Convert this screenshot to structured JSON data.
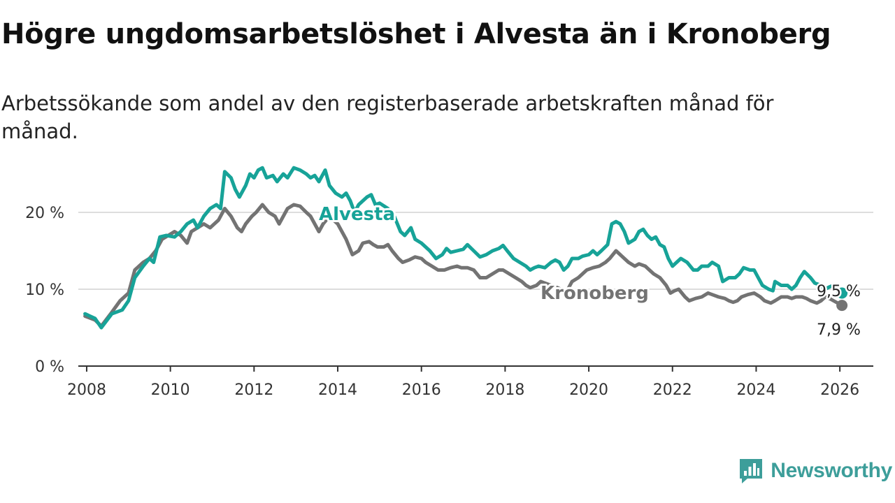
{
  "title": "Högre ungdomsarbetslöshet i Alvesta än i Kronoberg",
  "subtitle": "Arbetssökande som andel av den registerbaserade arbetskraften månad för månad.",
  "brand": {
    "name": "Newsworthy",
    "color": "#3d9e9a"
  },
  "chart_data": {
    "type": "line",
    "title": "Högre ungdomsarbetslöshet i Alvesta än i Kronoberg",
    "subtitle": "Arbetssökande som andel av den registerbaserade arbetskraften månad för månad.",
    "xlabel": "",
    "ylabel": "",
    "xlim": [
      2007.8,
      2026.8
    ],
    "ylim": [
      0,
      25
    ],
    "x_ticks": [
      {
        "value": 2008,
        "label": "2008"
      },
      {
        "value": 2010,
        "label": "2010"
      },
      {
        "value": 2012,
        "label": "2012"
      },
      {
        "value": 2014,
        "label": "2014"
      },
      {
        "value": 2016,
        "label": "2016"
      },
      {
        "value": 2018,
        "label": "2018"
      },
      {
        "value": 2020,
        "label": "2020"
      },
      {
        "value": 2022,
        "label": "2022"
      },
      {
        "value": 2024,
        "label": "2024"
      },
      {
        "value": 2026,
        "label": "2026"
      }
    ],
    "y_ticks": [
      {
        "value": 0,
        "label": "0 %"
      },
      {
        "value": 10,
        "label": "10 %"
      },
      {
        "value": 20,
        "label": "20 %"
      }
    ],
    "grid": true,
    "series": [
      {
        "name": "Alvesta",
        "color": "#17a398",
        "end_label": "9,5 %",
        "points": [
          [
            2007.96,
            6.8
          ],
          [
            2008.2,
            6.2
          ],
          [
            2008.35,
            5.0
          ],
          [
            2008.6,
            6.8
          ],
          [
            2008.85,
            7.3
          ],
          [
            2009.0,
            8.5
          ],
          [
            2009.15,
            11.5
          ],
          [
            2009.35,
            13.0
          ],
          [
            2009.5,
            14.0
          ],
          [
            2009.6,
            13.5
          ],
          [
            2009.75,
            16.8
          ],
          [
            2009.9,
            17.0
          ],
          [
            2010.1,
            16.8
          ],
          [
            2010.25,
            17.5
          ],
          [
            2010.4,
            18.5
          ],
          [
            2010.55,
            19.0
          ],
          [
            2010.65,
            18.0
          ],
          [
            2010.8,
            19.5
          ],
          [
            2010.95,
            20.5
          ],
          [
            2011.1,
            21.0
          ],
          [
            2011.2,
            20.5
          ],
          [
            2011.3,
            25.3
          ],
          [
            2011.45,
            24.5
          ],
          [
            2011.55,
            23.0
          ],
          [
            2011.65,
            22.0
          ],
          [
            2011.8,
            23.5
          ],
          [
            2011.9,
            25.0
          ],
          [
            2012.0,
            24.5
          ],
          [
            2012.1,
            25.5
          ],
          [
            2012.2,
            25.8
          ],
          [
            2012.3,
            24.5
          ],
          [
            2012.45,
            24.8
          ],
          [
            2012.55,
            24.0
          ],
          [
            2012.7,
            25.0
          ],
          [
            2012.8,
            24.5
          ],
          [
            2012.95,
            25.8
          ],
          [
            2013.1,
            25.5
          ],
          [
            2013.25,
            25.0
          ],
          [
            2013.35,
            24.5
          ],
          [
            2013.45,
            24.8
          ],
          [
            2013.55,
            24.0
          ],
          [
            2013.7,
            25.5
          ],
          [
            2013.8,
            23.5
          ],
          [
            2013.95,
            22.5
          ],
          [
            2014.1,
            22.0
          ],
          [
            2014.2,
            22.5
          ],
          [
            2014.3,
            21.5
          ],
          [
            2014.4,
            20.0
          ],
          [
            2014.5,
            21.0
          ],
          [
            2014.6,
            21.5
          ],
          [
            2014.7,
            22.0
          ],
          [
            2014.8,
            22.3
          ],
          [
            2014.9,
            21.0
          ],
          [
            2015.0,
            21.2
          ],
          [
            2015.2,
            20.5
          ],
          [
            2015.35,
            19.5
          ],
          [
            2015.5,
            17.5
          ],
          [
            2015.6,
            17.0
          ],
          [
            2015.75,
            18.0
          ],
          [
            2015.85,
            16.5
          ],
          [
            2016.0,
            16.0
          ],
          [
            2016.1,
            15.5
          ],
          [
            2016.2,
            15.0
          ],
          [
            2016.35,
            14.0
          ],
          [
            2016.5,
            14.5
          ],
          [
            2016.6,
            15.3
          ],
          [
            2016.7,
            14.8
          ],
          [
            2016.85,
            15.0
          ],
          [
            2017.0,
            15.2
          ],
          [
            2017.1,
            15.8
          ],
          [
            2017.25,
            15.0
          ],
          [
            2017.4,
            14.2
          ],
          [
            2017.55,
            14.5
          ],
          [
            2017.7,
            15.0
          ],
          [
            2017.85,
            15.3
          ],
          [
            2017.95,
            15.7
          ],
          [
            2018.05,
            15.0
          ],
          [
            2018.2,
            14.0
          ],
          [
            2018.35,
            13.5
          ],
          [
            2018.5,
            13.0
          ],
          [
            2018.6,
            12.5
          ],
          [
            2018.7,
            12.8
          ],
          [
            2018.8,
            13.0
          ],
          [
            2018.95,
            12.8
          ],
          [
            2019.1,
            13.5
          ],
          [
            2019.2,
            13.8
          ],
          [
            2019.3,
            13.5
          ],
          [
            2019.4,
            12.5
          ],
          [
            2019.5,
            13.0
          ],
          [
            2019.6,
            14.0
          ],
          [
            2019.75,
            14.0
          ],
          [
            2019.85,
            14.3
          ],
          [
            2020.0,
            14.5
          ],
          [
            2020.1,
            15.0
          ],
          [
            2020.2,
            14.5
          ],
          [
            2020.3,
            15.0
          ],
          [
            2020.45,
            15.8
          ],
          [
            2020.55,
            18.5
          ],
          [
            2020.65,
            18.8
          ],
          [
            2020.75,
            18.5
          ],
          [
            2020.85,
            17.5
          ],
          [
            2020.95,
            16.0
          ],
          [
            2021.1,
            16.5
          ],
          [
            2021.2,
            17.5
          ],
          [
            2021.3,
            17.8
          ],
          [
            2021.4,
            17.0
          ],
          [
            2021.5,
            16.5
          ],
          [
            2021.6,
            16.8
          ],
          [
            2021.7,
            15.8
          ],
          [
            2021.8,
            15.5
          ],
          [
            2021.9,
            14.0
          ],
          [
            2022.0,
            13.0
          ],
          [
            2022.1,
            13.5
          ],
          [
            2022.2,
            14.0
          ],
          [
            2022.35,
            13.5
          ],
          [
            2022.5,
            12.5
          ],
          [
            2022.6,
            12.5
          ],
          [
            2022.7,
            13.0
          ],
          [
            2022.85,
            13.0
          ],
          [
            2022.95,
            13.5
          ],
          [
            2023.1,
            13.0
          ],
          [
            2023.2,
            11.0
          ],
          [
            2023.35,
            11.5
          ],
          [
            2023.5,
            11.5
          ],
          [
            2023.6,
            12.0
          ],
          [
            2023.7,
            12.8
          ],
          [
            2023.85,
            12.5
          ],
          [
            2023.95,
            12.5
          ],
          [
            2024.05,
            11.5
          ],
          [
            2024.15,
            10.5
          ],
          [
            2024.3,
            10.0
          ],
          [
            2024.4,
            9.8
          ],
          [
            2024.45,
            11.0
          ],
          [
            2024.6,
            10.5
          ],
          [
            2024.75,
            10.5
          ],
          [
            2024.85,
            10.0
          ],
          [
            2024.95,
            10.5
          ],
          [
            2025.05,
            11.5
          ],
          [
            2025.15,
            12.3
          ],
          [
            2025.3,
            11.5
          ],
          [
            2025.4,
            10.8
          ],
          [
            2025.55,
            10.5
          ],
          [
            2025.65,
            10.0
          ],
          [
            2025.75,
            10.3
          ],
          [
            2025.85,
            10.5
          ],
          [
            2025.95,
            10.0
          ],
          [
            2026.05,
            9.5
          ]
        ]
      },
      {
        "name": "Kronoberg",
        "color": "#737373",
        "end_label": "7,9 %",
        "points": [
          [
            2007.96,
            6.5
          ],
          [
            2008.2,
            6.0
          ],
          [
            2008.35,
            5.2
          ],
          [
            2008.6,
            7.0
          ],
          [
            2008.8,
            8.5
          ],
          [
            2009.0,
            9.5
          ],
          [
            2009.15,
            12.5
          ],
          [
            2009.35,
            13.5
          ],
          [
            2009.5,
            14.0
          ],
          [
            2009.65,
            15.0
          ],
          [
            2009.8,
            16.5
          ],
          [
            2009.95,
            17.0
          ],
          [
            2010.1,
            17.5
          ],
          [
            2010.25,
            17.0
          ],
          [
            2010.4,
            16.0
          ],
          [
            2010.5,
            17.5
          ],
          [
            2010.65,
            18.0
          ],
          [
            2010.8,
            18.5
          ],
          [
            2010.95,
            18.0
          ],
          [
            2011.05,
            18.5
          ],
          [
            2011.15,
            19.0
          ],
          [
            2011.3,
            20.5
          ],
          [
            2011.45,
            19.5
          ],
          [
            2011.6,
            18.0
          ],
          [
            2011.7,
            17.5
          ],
          [
            2011.8,
            18.5
          ],
          [
            2011.95,
            19.5
          ],
          [
            2012.05,
            20.0
          ],
          [
            2012.2,
            21.0
          ],
          [
            2012.35,
            20.0
          ],
          [
            2012.5,
            19.5
          ],
          [
            2012.6,
            18.5
          ],
          [
            2012.7,
            19.5
          ],
          [
            2012.8,
            20.5
          ],
          [
            2012.95,
            21.0
          ],
          [
            2013.1,
            20.8
          ],
          [
            2013.25,
            20.0
          ],
          [
            2013.35,
            19.5
          ],
          [
            2013.45,
            18.5
          ],
          [
            2013.55,
            17.5
          ],
          [
            2013.65,
            18.5
          ],
          [
            2013.8,
            19.5
          ],
          [
            2013.9,
            19.0
          ],
          [
            2014.0,
            18.5
          ],
          [
            2014.1,
            17.5
          ],
          [
            2014.2,
            16.5
          ],
          [
            2014.35,
            14.5
          ],
          [
            2014.5,
            15.0
          ],
          [
            2014.6,
            16.0
          ],
          [
            2014.75,
            16.2
          ],
          [
            2014.85,
            15.8
          ],
          [
            2014.95,
            15.5
          ],
          [
            2015.1,
            15.5
          ],
          [
            2015.2,
            15.8
          ],
          [
            2015.3,
            15.0
          ],
          [
            2015.45,
            14.0
          ],
          [
            2015.55,
            13.5
          ],
          [
            2015.7,
            13.8
          ],
          [
            2015.85,
            14.2
          ],
          [
            2016.0,
            14.0
          ],
          [
            2016.1,
            13.5
          ],
          [
            2016.25,
            13.0
          ],
          [
            2016.4,
            12.5
          ],
          [
            2016.55,
            12.5
          ],
          [
            2016.7,
            12.8
          ],
          [
            2016.85,
            13.0
          ],
          [
            2016.95,
            12.8
          ],
          [
            2017.1,
            12.8
          ],
          [
            2017.25,
            12.5
          ],
          [
            2017.4,
            11.5
          ],
          [
            2017.55,
            11.5
          ],
          [
            2017.7,
            12.0
          ],
          [
            2017.85,
            12.5
          ],
          [
            2017.95,
            12.5
          ],
          [
            2018.1,
            12.0
          ],
          [
            2018.25,
            11.5
          ],
          [
            2018.4,
            11.0
          ],
          [
            2018.5,
            10.5
          ],
          [
            2018.6,
            10.2
          ],
          [
            2018.75,
            10.5
          ],
          [
            2018.85,
            11.0
          ],
          [
            2018.95,
            10.8
          ],
          [
            2019.1,
            10.5
          ],
          [
            2019.25,
            10.2
          ],
          [
            2019.4,
            9.8
          ],
          [
            2019.5,
            10.0
          ],
          [
            2019.6,
            11.0
          ],
          [
            2019.75,
            11.5
          ],
          [
            2019.85,
            12.0
          ],
          [
            2019.95,
            12.5
          ],
          [
            2020.1,
            12.8
          ],
          [
            2020.25,
            13.0
          ],
          [
            2020.4,
            13.5
          ],
          [
            2020.5,
            14.0
          ],
          [
            2020.65,
            15.0
          ],
          [
            2020.75,
            14.5
          ],
          [
            2020.85,
            14.0
          ],
          [
            2020.95,
            13.5
          ],
          [
            2021.1,
            13.0
          ],
          [
            2021.2,
            13.3
          ],
          [
            2021.35,
            13.0
          ],
          [
            2021.45,
            12.5
          ],
          [
            2021.55,
            12.0
          ],
          [
            2021.7,
            11.5
          ],
          [
            2021.85,
            10.5
          ],
          [
            2021.95,
            9.5
          ],
          [
            2022.05,
            9.8
          ],
          [
            2022.15,
            10.0
          ],
          [
            2022.3,
            9.0
          ],
          [
            2022.4,
            8.5
          ],
          [
            2022.55,
            8.8
          ],
          [
            2022.7,
            9.0
          ],
          [
            2022.85,
            9.5
          ],
          [
            2022.95,
            9.3
          ],
          [
            2023.1,
            9.0
          ],
          [
            2023.25,
            8.8
          ],
          [
            2023.35,
            8.5
          ],
          [
            2023.45,
            8.3
          ],
          [
            2023.55,
            8.5
          ],
          [
            2023.65,
            9.0
          ],
          [
            2023.8,
            9.3
          ],
          [
            2023.95,
            9.5
          ],
          [
            2024.1,
            9.0
          ],
          [
            2024.2,
            8.5
          ],
          [
            2024.35,
            8.2
          ],
          [
            2024.45,
            8.5
          ],
          [
            2024.6,
            9.0
          ],
          [
            2024.75,
            9.0
          ],
          [
            2024.85,
            8.8
          ],
          [
            2024.95,
            9.0
          ],
          [
            2025.1,
            9.0
          ],
          [
            2025.2,
            8.8
          ],
          [
            2025.3,
            8.5
          ],
          [
            2025.45,
            8.2
          ],
          [
            2025.55,
            8.5
          ],
          [
            2025.65,
            9.0
          ],
          [
            2025.75,
            8.8
          ],
          [
            2025.85,
            8.5
          ],
          [
            2025.95,
            8.2
          ],
          [
            2026.05,
            7.9
          ]
        ]
      }
    ]
  }
}
